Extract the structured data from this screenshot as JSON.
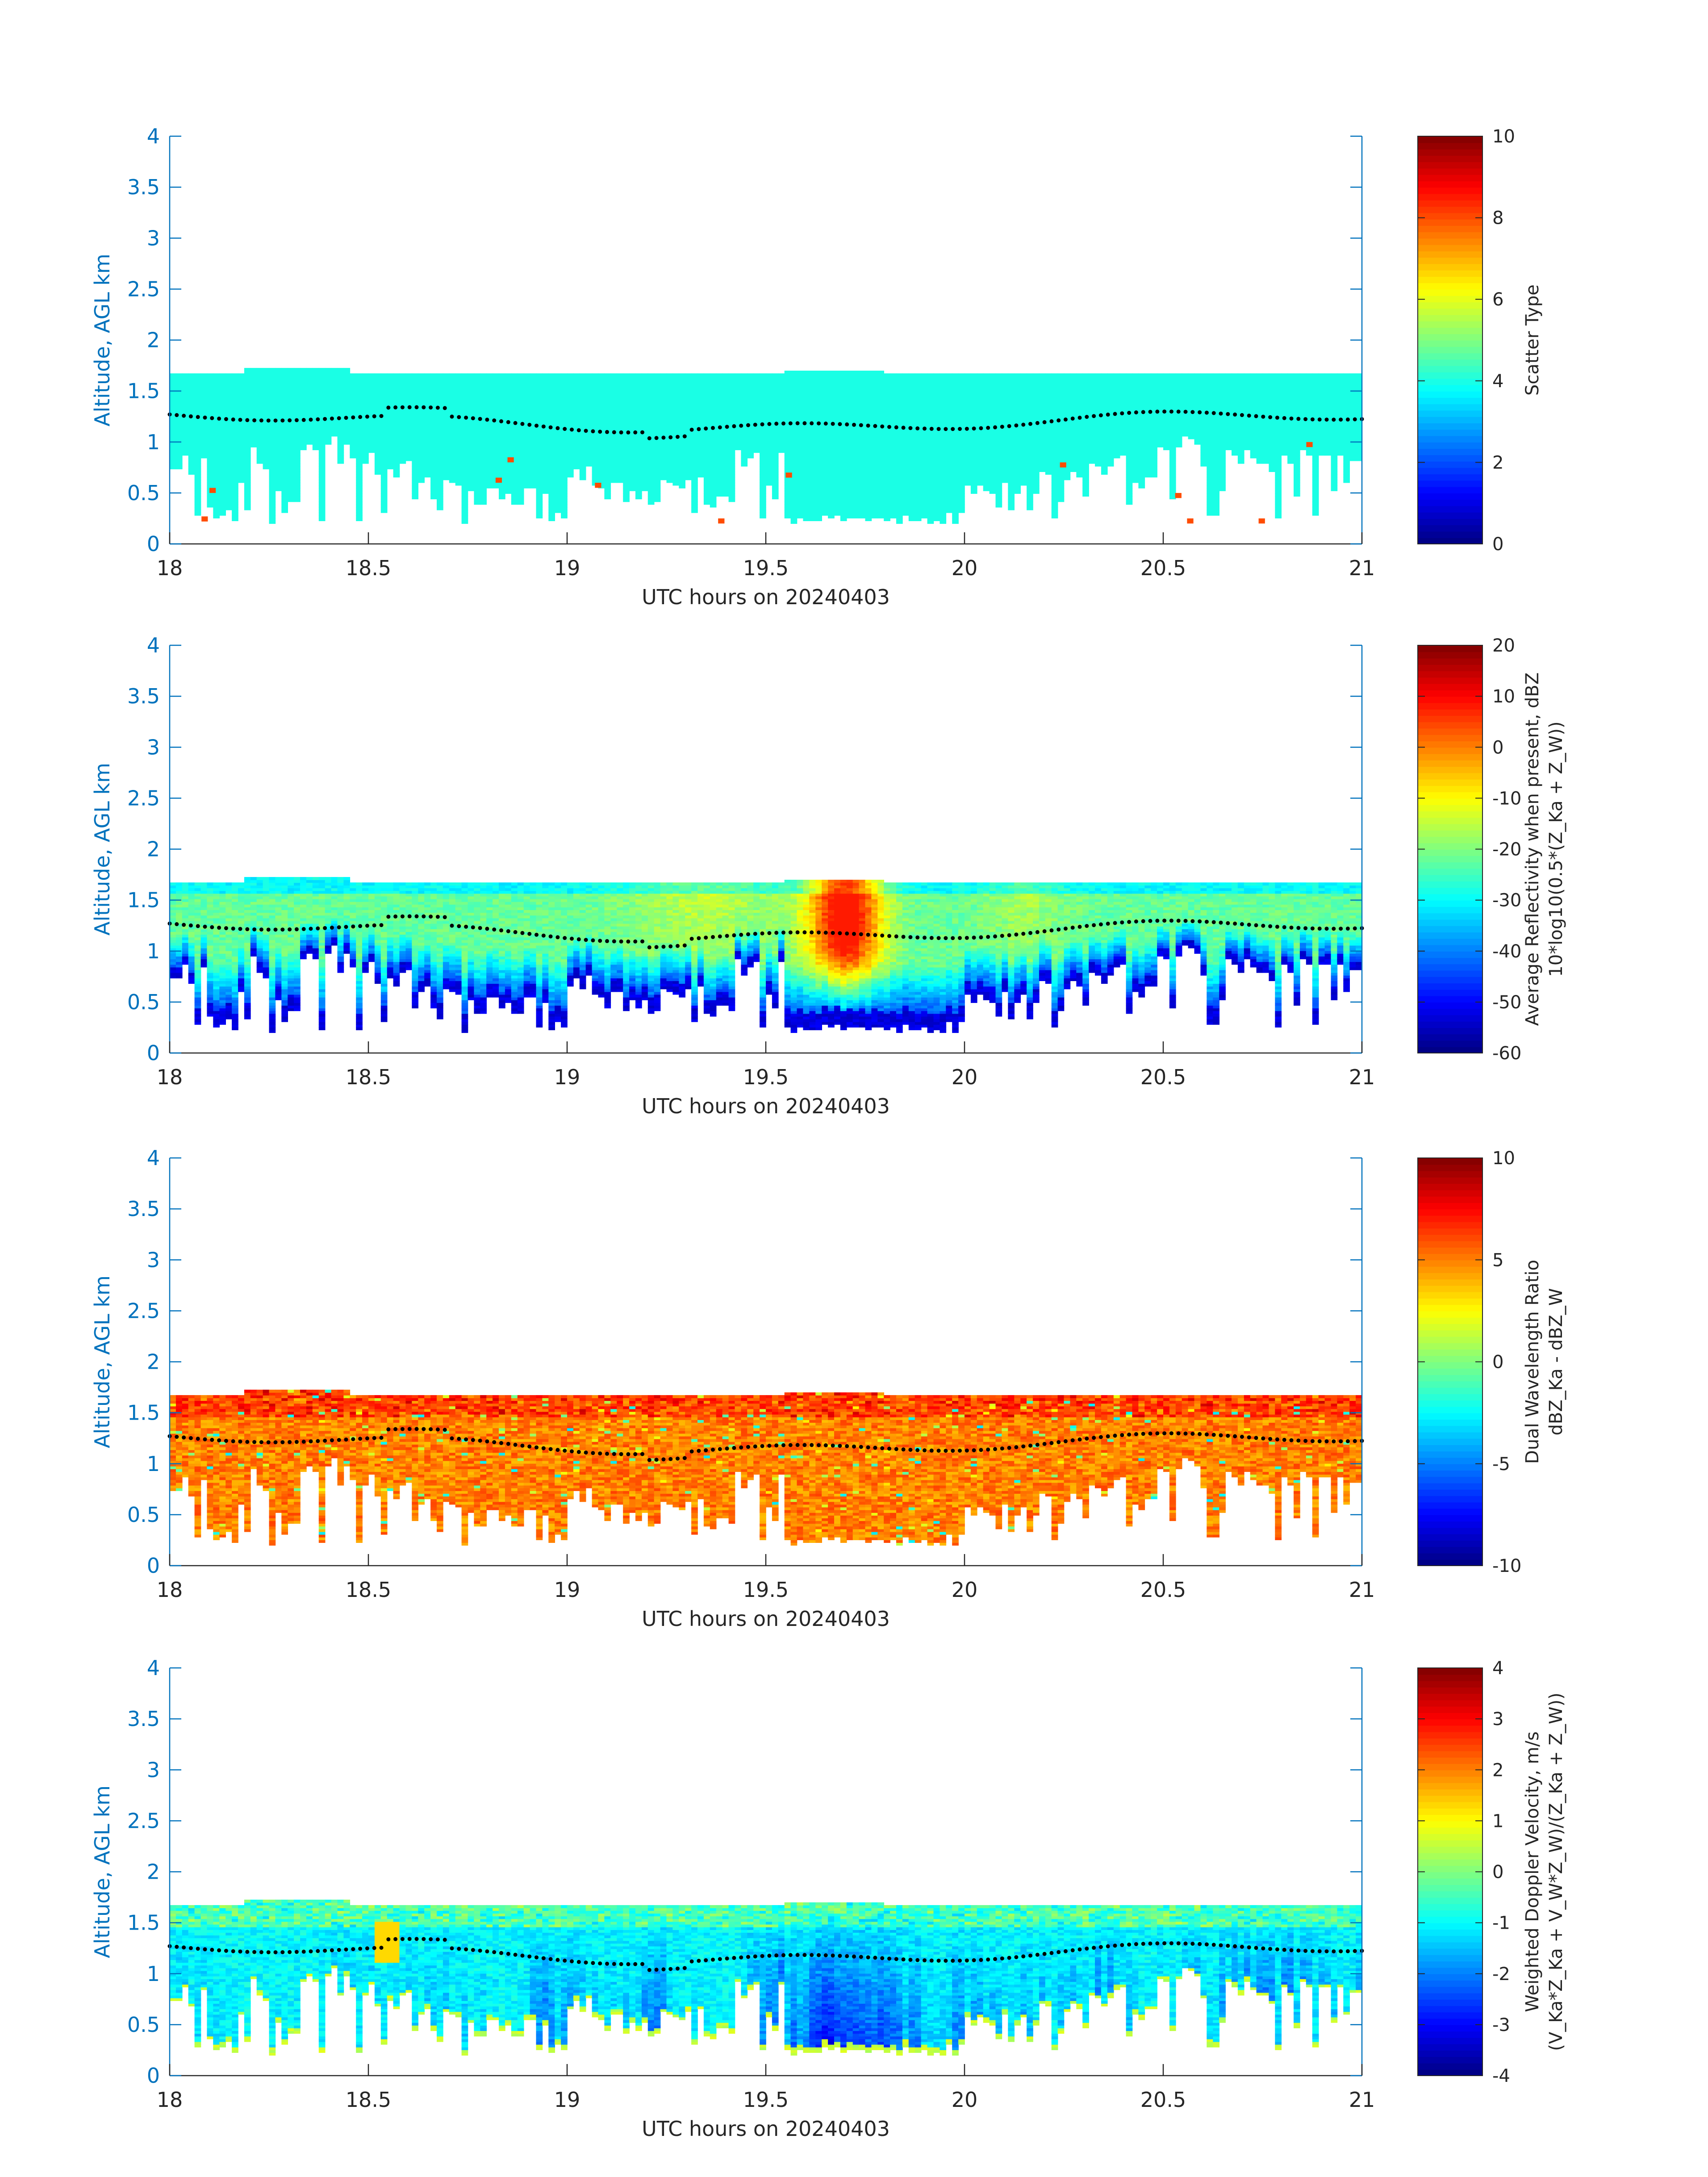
{
  "colors": {
    "axis_blue": "#0072bd",
    "tick_text": "#262626",
    "cloud_top_marker": "#000000"
  },
  "chart_data": [
    {
      "type": "heatmap",
      "xlabel": "UTC hours on 20240403",
      "ylabel": "Altitude, AGL km",
      "xlim": [
        18,
        21
      ],
      "ylim": [
        0,
        4
      ],
      "xticks": [
        "18",
        "18.5",
        "19",
        "19.5",
        "20",
        "20.5",
        "21"
      ],
      "yticks": [
        "0",
        "0.5",
        "1",
        "1.5",
        "2",
        "2.5",
        "3",
        "3.5",
        "4"
      ],
      "colorbar": {
        "label_line1": "Scatter Type",
        "label_line2": "",
        "clim": [
          0,
          10
        ],
        "ticks": [
          "0",
          "2",
          "4",
          "6",
          "8",
          "10"
        ]
      },
      "cloud_top_km": 1.65,
      "dominant_value": 4,
      "outlier_value": 8,
      "outliers": [
        [
          18.08,
          0.22
        ],
        [
          18.1,
          0.5
        ],
        [
          18.82,
          0.6
        ],
        [
          18.85,
          0.8
        ],
        [
          19.07,
          0.55
        ],
        [
          19.38,
          0.2
        ],
        [
          19.55,
          0.65
        ],
        [
          20.24,
          0.75
        ],
        [
          20.53,
          0.45
        ],
        [
          20.56,
          0.2
        ],
        [
          20.74,
          0.2
        ],
        [
          20.86,
          0.95
        ]
      ],
      "cloud_line_km": "approximately 1.1 – 1.3"
    },
    {
      "type": "heatmap",
      "xlabel": "UTC hours on 20240403",
      "ylabel": "Altitude, AGL km",
      "xlim": [
        18,
        21
      ],
      "ylim": [
        0,
        4
      ],
      "xticks": [
        "18",
        "18.5",
        "19",
        "19.5",
        "20",
        "20.5",
        "21"
      ],
      "yticks": [
        "0",
        "0.5",
        "1",
        "1.5",
        "2",
        "2.5",
        "3",
        "3.5",
        "4"
      ],
      "colorbar": {
        "label_line1": "Average Reflectivity when present, dBZ",
        "label_line2": "10*log10(0.5*(Z_Ka + Z_W))",
        "clim": [
          -60,
          20
        ],
        "ticks": [
          "-60",
          "-50",
          "-40",
          "-30",
          "-20",
          "-10",
          "0",
          "10",
          "20"
        ]
      },
      "cloud_top_km": 1.65,
      "value_profile": "about -55 dBZ at cloud base and edges, -30 near top, up to +5 around 19.7 h"
    },
    {
      "type": "heatmap",
      "xlabel": "UTC hours on 20240403",
      "ylabel": "Altitude, AGL km",
      "xlim": [
        18,
        21
      ],
      "ylim": [
        0,
        4
      ],
      "xticks": [
        "18",
        "18.5",
        "19",
        "19.5",
        "20",
        "20.5",
        "21"
      ],
      "yticks": [
        "0",
        "0.5",
        "1",
        "1.5",
        "2",
        "2.5",
        "3",
        "3.5",
        "4"
      ],
      "colorbar": {
        "label_line1": "Dual Wavelength Ratio",
        "label_line2": "dBZ_Ka - dBZ_W",
        "clim": [
          -10,
          10
        ],
        "ticks": [
          "-10",
          "-5",
          "0",
          "5",
          "10"
        ]
      },
      "cloud_top_km": 1.65,
      "value_profile": "mostly 4 – 7 dB, up to 9 near cloud top"
    },
    {
      "type": "heatmap",
      "xlabel": "UTC hours on 20240403",
      "ylabel": "Altitude, AGL km",
      "xlim": [
        18,
        21
      ],
      "ylim": [
        0,
        4
      ],
      "xticks": [
        "18",
        "18.5",
        "19",
        "19.5",
        "20",
        "20.5",
        "21"
      ],
      "yticks": [
        "0",
        "0.5",
        "1",
        "1.5",
        "2",
        "2.5",
        "3",
        "3.5",
        "4"
      ],
      "colorbar": {
        "label_line1": "Weighted Doppler Velocity, m/s",
        "label_line2": "(V_Ka*Z_Ka + V_W*Z_W)/(Z_Ka + Z_W))",
        "clim": [
          -4,
          4
        ],
        "ticks": [
          "-4",
          "-3",
          "-2",
          "-1",
          "0",
          "1",
          "2",
          "3",
          "4"
        ]
      },
      "cloud_top_km": 1.65,
      "value_profile": "about -1 m/s, down to -3 m/s in fall streaks, near 0 to +1 at cloud top"
    }
  ]
}
